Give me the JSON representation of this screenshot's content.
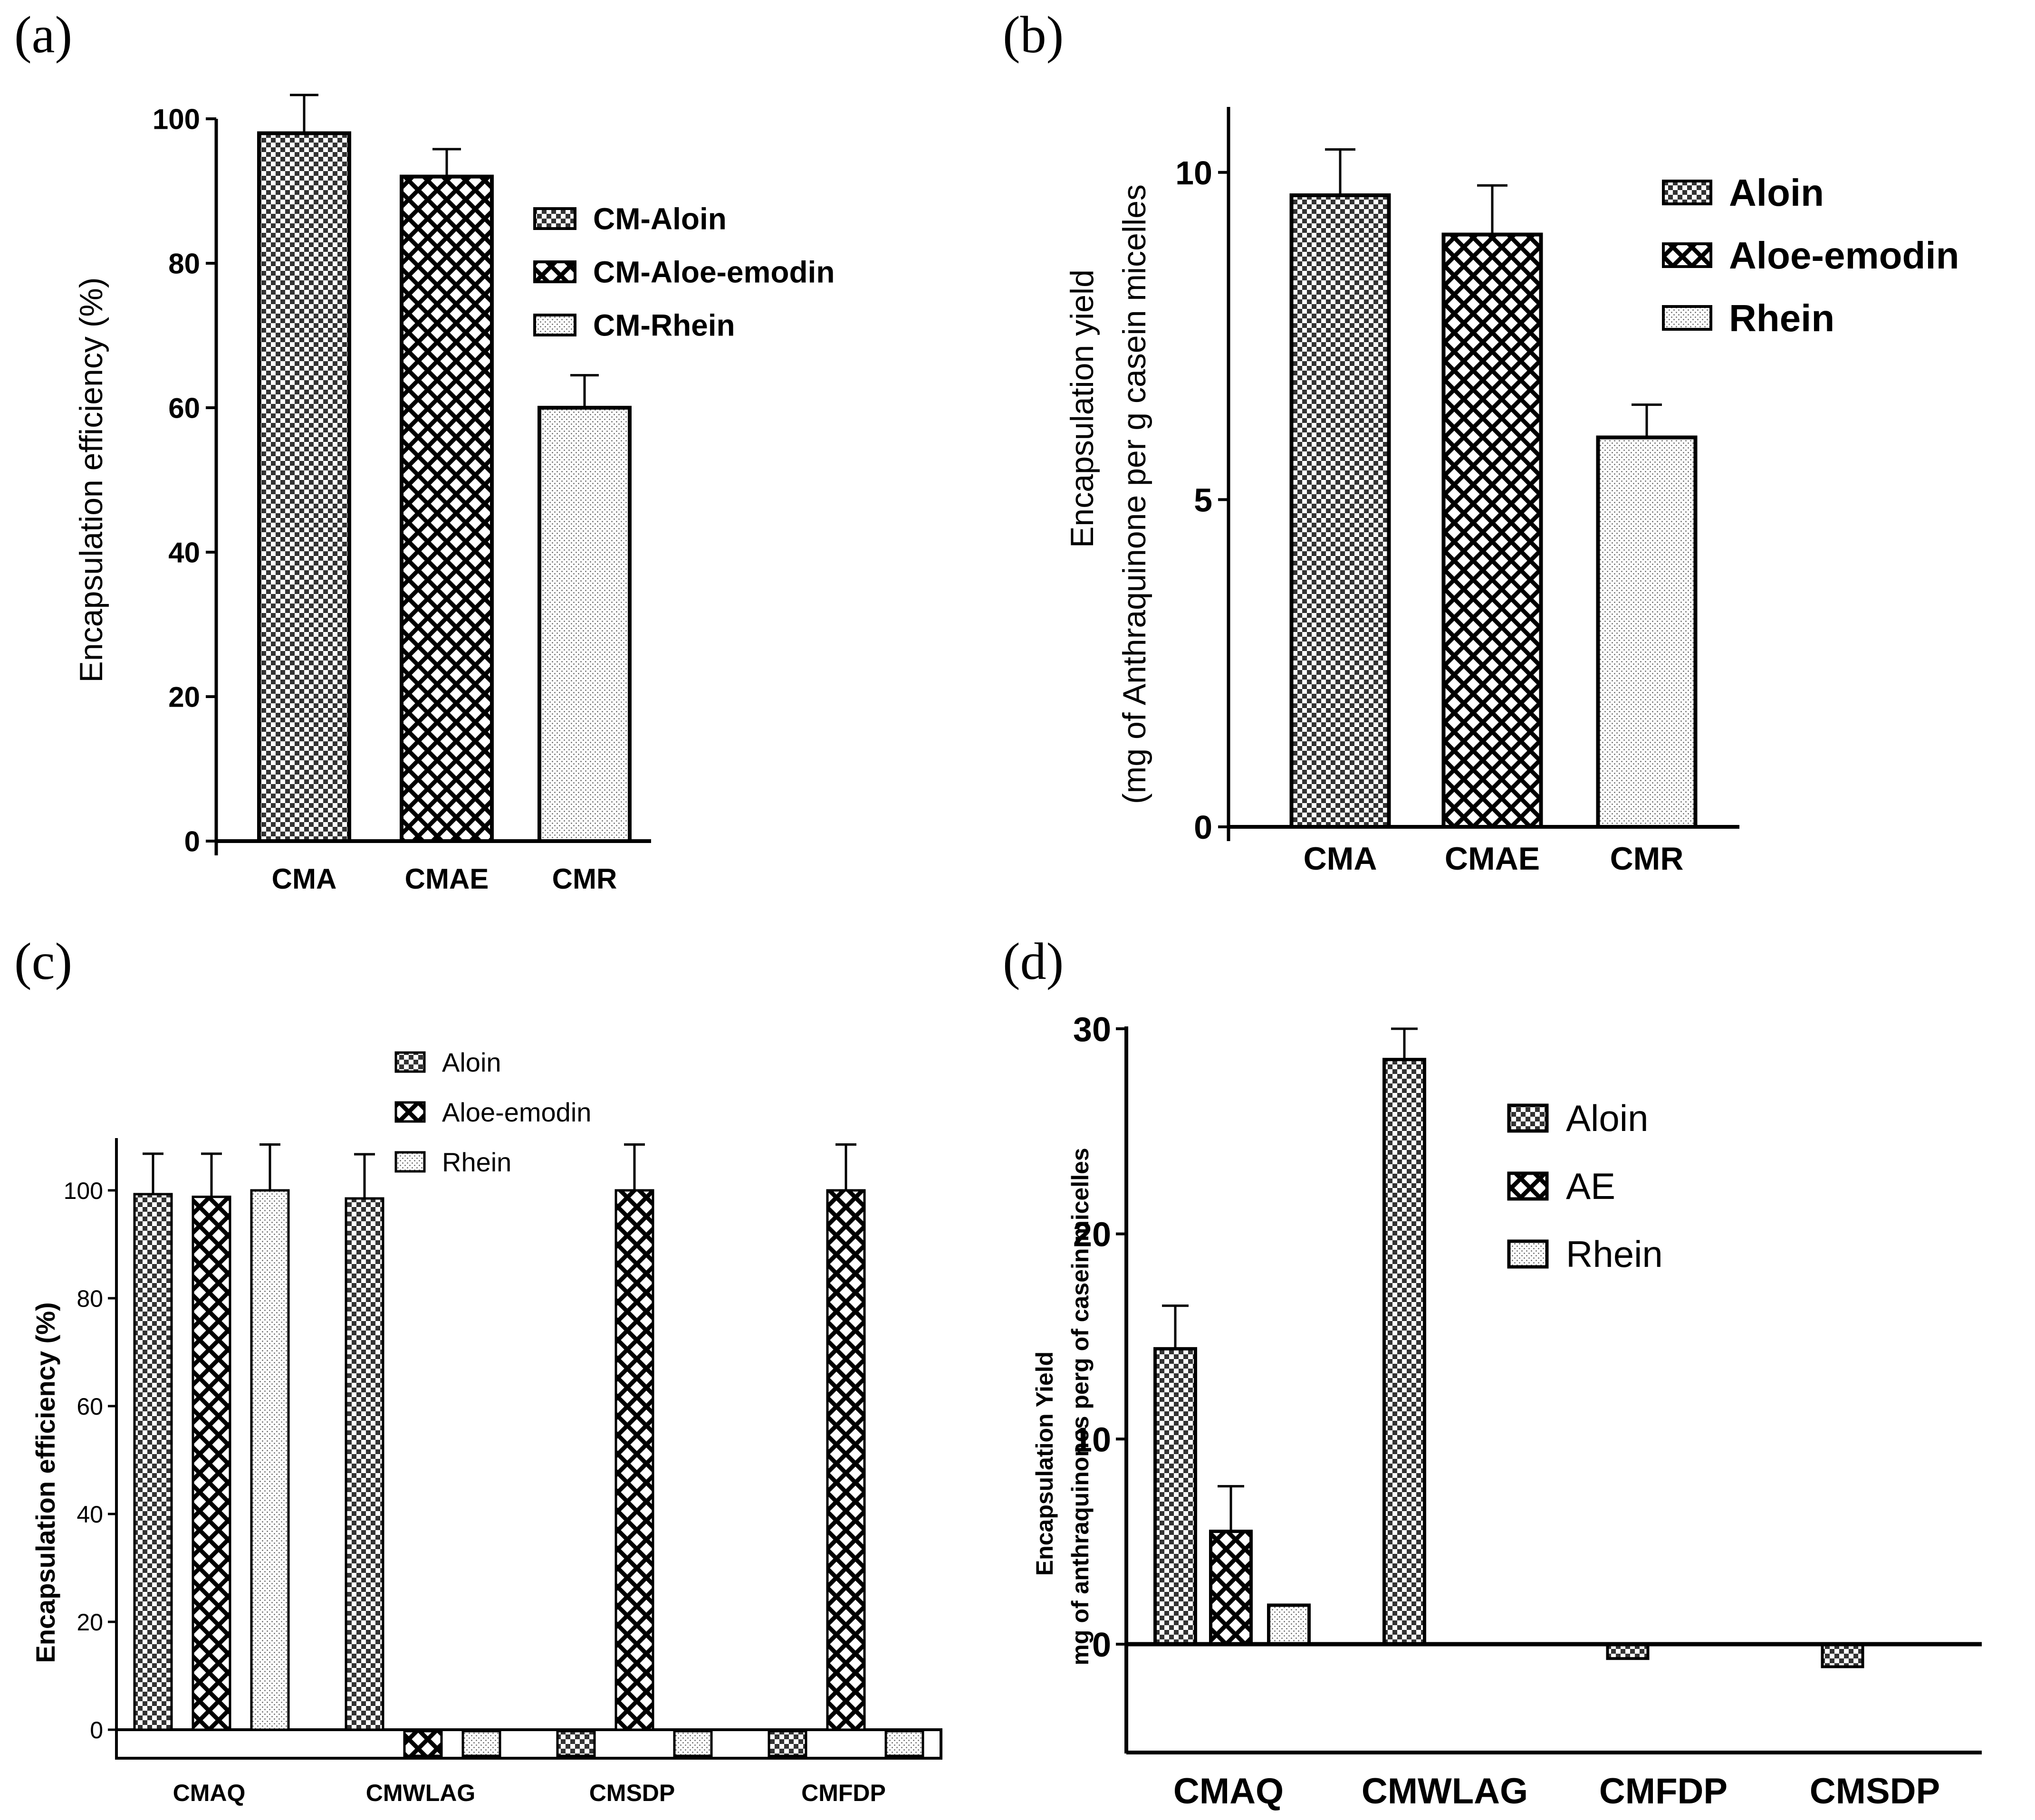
{
  "figure": {
    "panels": [
      "(a)",
      "(b)",
      "(c)",
      "(d)"
    ]
  },
  "colors": {
    "ink": "#000000",
    "background": "#ffffff",
    "aloin_dot": "#333333",
    "rhein_dot": "#777777"
  },
  "chart_data": [
    {
      "panel": "(a)",
      "type": "bar",
      "title": "",
      "xlabel": "",
      "ylabel": "Encapsulation efficiency (%)",
      "ylim": [
        0,
        100
      ],
      "yticks": [
        0,
        20,
        40,
        60,
        80,
        100
      ],
      "ytick_labels": [
        "0",
        "20",
        "40",
        "60",
        "80",
        "100"
      ],
      "categories": [
        "CMA",
        "CMAE",
        "CMR"
      ],
      "bars": [
        {
          "category": "CMA",
          "value": 98,
          "error": 5.3,
          "pattern": "checker"
        },
        {
          "category": "CMAE",
          "value": 92,
          "error": 3.8,
          "pattern": "crosshatch"
        },
        {
          "category": "CMR",
          "value": 60,
          "error": 4.5,
          "pattern": "dots"
        }
      ],
      "legend": [
        {
          "label": "CM-Aloin",
          "pattern": "checker"
        },
        {
          "label": "CM-Aloe-emodin",
          "pattern": "crosshatch"
        },
        {
          "label": "CM-Rhein",
          "pattern": "dots"
        }
      ],
      "legend_position": "top-right"
    },
    {
      "panel": "(b)",
      "type": "bar",
      "title": "",
      "xlabel": "",
      "ylabel": "Encapsulation yield",
      "ylabel2": "(mg of Anthraquinone per g casein micelles",
      "ylim": [
        0,
        11
      ],
      "yticks": [
        0,
        5,
        10
      ],
      "ytick_labels": [
        "0",
        "5",
        "10"
      ],
      "categories": [
        "CMA",
        "CMAE",
        "CMR"
      ],
      "bars": [
        {
          "category": "CMA",
          "value": 9.65,
          "error": 0.7,
          "pattern": "checker"
        },
        {
          "category": "CMAE",
          "value": 9.05,
          "error": 0.75,
          "pattern": "crosshatch"
        },
        {
          "category": "CMR",
          "value": 5.95,
          "error": 0.5,
          "pattern": "dots"
        }
      ],
      "legend": [
        {
          "label": "Aloin",
          "pattern": "checker"
        },
        {
          "label": "Aloe-emodin",
          "pattern": "crosshatch"
        },
        {
          "label": "Rhein",
          "pattern": "dots"
        }
      ],
      "legend_position": "top-right"
    },
    {
      "panel": "(c)",
      "type": "bar",
      "title": "",
      "xlabel": "",
      "ylabel": "Encapsulation efficiency (%)",
      "ylim": [
        -5,
        110
      ],
      "yticks": [
        0,
        20,
        40,
        60,
        80,
        100
      ],
      "ytick_labels": [
        "0",
        "20",
        "40",
        "60",
        "80",
        "100"
      ],
      "categories": [
        "CMAQ",
        "CMWLAG",
        "CMSDP",
        "CMFDP"
      ],
      "series": [
        {
          "name": "Aloin",
          "pattern": "checker",
          "values": [
            99.3,
            98.5,
            -5,
            -5
          ],
          "errors": [
            7.5,
            8.2,
            0,
            0
          ]
        },
        {
          "name": "Aloe-emodin",
          "pattern": "crosshatch",
          "values": [
            98.8,
            -5,
            100,
            100
          ],
          "errors": [
            8,
            0,
            8.5,
            8.5
          ]
        },
        {
          "name": "Rhein",
          "pattern": "dots",
          "values": [
            100,
            -5,
            -5,
            -5
          ],
          "errors": [
            8.5,
            0,
            0,
            0
          ]
        }
      ],
      "legend": [
        {
          "label": "Aloin",
          "pattern": "checker"
        },
        {
          "label": "Aloe-emodin",
          "pattern": "crosshatch"
        },
        {
          "label": "Rhein",
          "pattern": "dots"
        }
      ],
      "legend_position": "top"
    },
    {
      "panel": "(d)",
      "type": "bar",
      "title": "",
      "xlabel": "",
      "ylabel": "Encapsulation Yield",
      "ylabel2": "mg of anthraquinones perg of casein micelles",
      "ylim": [
        -5,
        30
      ],
      "yticks": [
        0,
        10,
        20,
        30
      ],
      "ytick_labels": [
        "0",
        "10",
        "20",
        "30"
      ],
      "categories": [
        "CMAQ",
        "CMWLAG",
        "CMFDP",
        "CMSDP"
      ],
      "series": [
        {
          "name": "Aloin",
          "pattern": "checker",
          "values": [
            14.4,
            28.5,
            -0.7,
            -1.1
          ],
          "errors": [
            2.1,
            1.5,
            0,
            0
          ]
        },
        {
          "name": "AE",
          "pattern": "crosshatch",
          "values": [
            5.5,
            0,
            0,
            0
          ],
          "errors": [
            2.2,
            0,
            0,
            0
          ]
        },
        {
          "name": "Rhein",
          "pattern": "dots",
          "values": [
            1.9,
            0,
            0,
            0
          ],
          "errors": [
            0,
            0,
            0,
            0
          ]
        }
      ],
      "legend": [
        {
          "label": "Aloin",
          "pattern": "checker"
        },
        {
          "label": "AE",
          "pattern": "crosshatch"
        },
        {
          "label": "Rhein",
          "pattern": "dots"
        }
      ],
      "legend_position": "top-right"
    }
  ]
}
